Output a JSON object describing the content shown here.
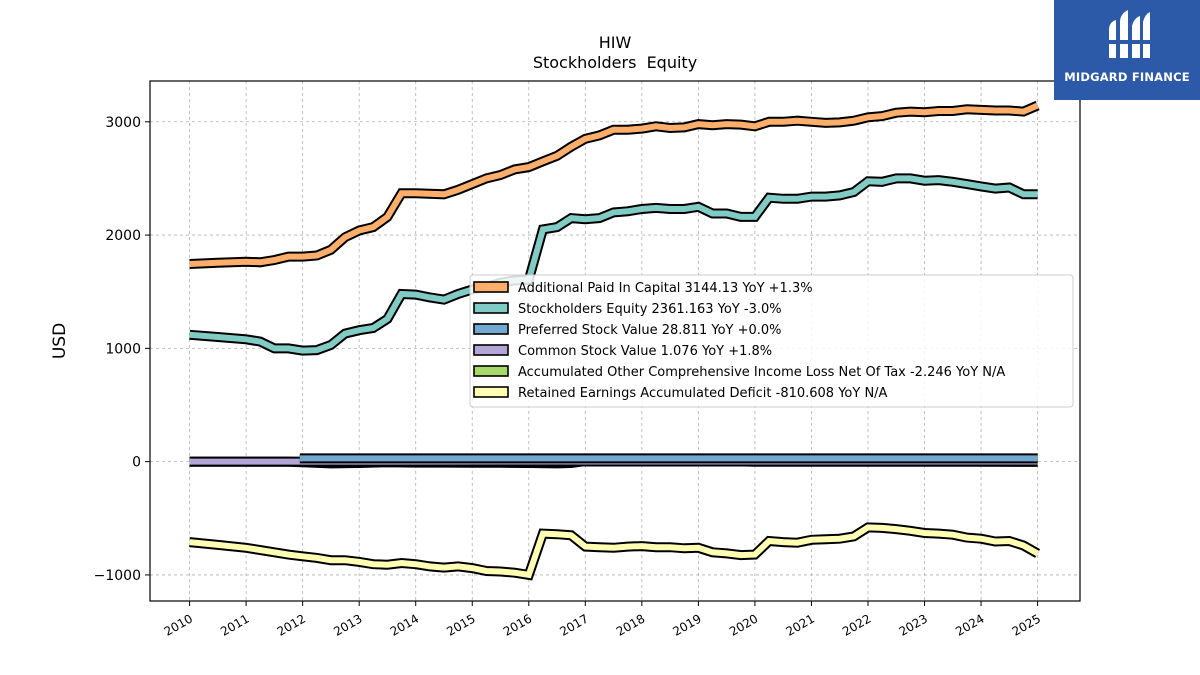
{
  "chart_data": {
    "type": "line",
    "title": "HIW",
    "subtitle": "Stockholders  Equity",
    "ylabel": "USD",
    "xlabel": "",
    "ylim": [
      -1230,
      3360
    ],
    "xlim": [
      2009.3,
      2025.75
    ],
    "yticks": [
      -1000,
      0,
      1000,
      2000,
      3000
    ],
    "ytick_labels": [
      "−1000",
      "0",
      "1000",
      "2000",
      "3000"
    ],
    "xticks": [
      2010,
      2011,
      2012,
      2013,
      2014,
      2015,
      2016,
      2017,
      2018,
      2019,
      2020,
      2021,
      2022,
      2023,
      2024,
      2025
    ],
    "xtick_labels": [
      "2010",
      "2011",
      "2012",
      "2013",
      "2014",
      "2015",
      "2016",
      "2017",
      "2018",
      "2019",
      "2020",
      "2021",
      "2022",
      "2023",
      "2024",
      "2025"
    ],
    "grid": true,
    "legend_position": "center-right",
    "series": [
      {
        "name": "Additional Paid In Capital",
        "legend": "Additional Paid In Capital  3144.13 YoY +1.3%",
        "color": "#fdae6b",
        "points": [
          [
            2010.0,
            1745
          ],
          [
            2010.5,
            1755
          ],
          [
            2011.0,
            1765
          ],
          [
            2011.25,
            1760
          ],
          [
            2011.5,
            1780
          ],
          [
            2011.75,
            1810
          ],
          [
            2012.0,
            1810
          ],
          [
            2012.25,
            1820
          ],
          [
            2012.5,
            1870
          ],
          [
            2012.75,
            1980
          ],
          [
            2013.0,
            2040
          ],
          [
            2013.25,
            2070
          ],
          [
            2013.5,
            2160
          ],
          [
            2013.75,
            2370
          ],
          [
            2014.0,
            2370
          ],
          [
            2014.5,
            2360
          ],
          [
            2014.75,
            2400
          ],
          [
            2015.0,
            2450
          ],
          [
            2015.25,
            2500
          ],
          [
            2015.5,
            2530
          ],
          [
            2015.75,
            2580
          ],
          [
            2016.0,
            2600
          ],
          [
            2016.25,
            2650
          ],
          [
            2016.5,
            2700
          ],
          [
            2016.75,
            2780
          ],
          [
            2017.0,
            2850
          ],
          [
            2017.25,
            2880
          ],
          [
            2017.5,
            2930
          ],
          [
            2017.75,
            2930
          ],
          [
            2018.0,
            2940
          ],
          [
            2018.25,
            2960
          ],
          [
            2018.5,
            2945
          ],
          [
            2018.75,
            2950
          ],
          [
            2019.0,
            2980
          ],
          [
            2019.25,
            2970
          ],
          [
            2019.5,
            2980
          ],
          [
            2019.75,
            2975
          ],
          [
            2020.0,
            2960
          ],
          [
            2020.25,
            3000
          ],
          [
            2020.5,
            3000
          ],
          [
            2020.75,
            3010
          ],
          [
            2021.0,
            3000
          ],
          [
            2021.25,
            2990
          ],
          [
            2021.5,
            2995
          ],
          [
            2021.75,
            3010
          ],
          [
            2022.0,
            3040
          ],
          [
            2022.25,
            3050
          ],
          [
            2022.5,
            3080
          ],
          [
            2022.75,
            3090
          ],
          [
            2023.0,
            3085
          ],
          [
            2023.25,
            3095
          ],
          [
            2023.5,
            3095
          ],
          [
            2023.75,
            3110
          ],
          [
            2024.0,
            3105
          ],
          [
            2024.25,
            3100
          ],
          [
            2024.5,
            3100
          ],
          [
            2024.75,
            3090
          ],
          [
            2025.0,
            3144
          ]
        ]
      },
      {
        "name": "Stockholders Equity",
        "legend": "Stockholders Equity  2361.163 YoY -3.0%",
        "color": "#80cbc4",
        "points": [
          [
            2010.0,
            1120
          ],
          [
            2010.5,
            1100
          ],
          [
            2011.0,
            1080
          ],
          [
            2011.25,
            1060
          ],
          [
            2011.5,
            1000
          ],
          [
            2011.75,
            1000
          ],
          [
            2012.0,
            980
          ],
          [
            2012.25,
            985
          ],
          [
            2012.5,
            1030
          ],
          [
            2012.75,
            1130
          ],
          [
            2013.0,
            1160
          ],
          [
            2013.25,
            1180
          ],
          [
            2013.5,
            1260
          ],
          [
            2013.75,
            1480
          ],
          [
            2014.0,
            1475
          ],
          [
            2014.25,
            1450
          ],
          [
            2014.5,
            1430
          ],
          [
            2014.75,
            1480
          ],
          [
            2015.0,
            1520
          ],
          [
            2015.25,
            1540
          ],
          [
            2015.5,
            1580
          ],
          [
            2015.75,
            1600
          ],
          [
            2016.0,
            1605
          ],
          [
            2016.25,
            2050
          ],
          [
            2016.5,
            2070
          ],
          [
            2016.75,
            2150
          ],
          [
            2017.0,
            2140
          ],
          [
            2017.25,
            2150
          ],
          [
            2017.5,
            2200
          ],
          [
            2017.75,
            2210
          ],
          [
            2018.0,
            2230
          ],
          [
            2018.25,
            2240
          ],
          [
            2018.5,
            2230
          ],
          [
            2018.75,
            2230
          ],
          [
            2019.0,
            2250
          ],
          [
            2019.25,
            2190
          ],
          [
            2019.5,
            2190
          ],
          [
            2019.75,
            2160
          ],
          [
            2020.0,
            2160
          ],
          [
            2020.25,
            2330
          ],
          [
            2020.5,
            2320
          ],
          [
            2020.75,
            2320
          ],
          [
            2021.0,
            2340
          ],
          [
            2021.25,
            2340
          ],
          [
            2021.5,
            2350
          ],
          [
            2021.75,
            2380
          ],
          [
            2022.0,
            2475
          ],
          [
            2022.25,
            2470
          ],
          [
            2022.5,
            2500
          ],
          [
            2022.75,
            2500
          ],
          [
            2023.0,
            2480
          ],
          [
            2023.25,
            2485
          ],
          [
            2023.5,
            2470
          ],
          [
            2023.75,
            2450
          ],
          [
            2024.0,
            2430
          ],
          [
            2024.25,
            2410
          ],
          [
            2024.5,
            2420
          ],
          [
            2024.75,
            2360
          ],
          [
            2025.0,
            2361
          ]
        ]
      },
      {
        "name": "Preferred Stock Value",
        "legend": "Preferred Stock Value  28.811 YoY +0.0%",
        "color": "#74a9cf",
        "points": [
          [
            2011.95,
            29
          ],
          [
            2025.0,
            29
          ]
        ]
      },
      {
        "name": "Common Stock Value",
        "legend": "Common Stock Value  1.076 YoY +1.8%",
        "color": "#b3a6d6",
        "points": [
          [
            2010.0,
            0.7
          ],
          [
            2025.0,
            1.1
          ]
        ]
      },
      {
        "name": "Accumulated Other Comprehensive Income Loss Net Of Tax",
        "legend": "Accumulated Other Comprehensive Income Loss Net Of Tax  -2.246 YoY N/A",
        "color": "#a6d96a",
        "points": [
          [
            2010.0,
            0
          ],
          [
            2011.75,
            0
          ],
          [
            2012.0,
            -5
          ],
          [
            2012.5,
            -15
          ],
          [
            2013.0,
            -12
          ],
          [
            2013.5,
            -5
          ],
          [
            2014.0,
            -8
          ],
          [
            2014.5,
            -8
          ],
          [
            2015.0,
            -10
          ],
          [
            2015.5,
            -10
          ],
          [
            2016.0,
            -12
          ],
          [
            2016.5,
            -15
          ],
          [
            2016.75,
            -12
          ],
          [
            2017.0,
            5
          ],
          [
            2017.5,
            10
          ],
          [
            2018.0,
            15
          ],
          [
            2018.5,
            20
          ],
          [
            2019.0,
            12
          ],
          [
            2019.5,
            5
          ],
          [
            2020.0,
            0
          ],
          [
            2021.0,
            0
          ],
          [
            2022.0,
            0
          ],
          [
            2023.0,
            0
          ],
          [
            2024.0,
            0
          ],
          [
            2025.0,
            -2
          ]
        ]
      },
      {
        "name": "Retained Earnings Accumulated Deficit",
        "legend": "Retained Earnings Accumulated Deficit  -810.608 YoY N/A",
        "color": "#ffffb3",
        "points": [
          [
            2010.0,
            -710
          ],
          [
            2010.5,
            -735
          ],
          [
            2011.0,
            -760
          ],
          [
            2011.5,
            -800
          ],
          [
            2011.75,
            -820
          ],
          [
            2012.0,
            -835
          ],
          [
            2012.25,
            -850
          ],
          [
            2012.5,
            -870
          ],
          [
            2012.75,
            -870
          ],
          [
            2013.0,
            -885
          ],
          [
            2013.25,
            -905
          ],
          [
            2013.5,
            -910
          ],
          [
            2013.75,
            -895
          ],
          [
            2014.0,
            -905
          ],
          [
            2014.25,
            -925
          ],
          [
            2014.5,
            -935
          ],
          [
            2014.75,
            -925
          ],
          [
            2015.0,
            -940
          ],
          [
            2015.25,
            -965
          ],
          [
            2015.5,
            -970
          ],
          [
            2015.75,
            -980
          ],
          [
            2016.0,
            -1000
          ],
          [
            2016.25,
            -635
          ],
          [
            2016.5,
            -640
          ],
          [
            2016.75,
            -650
          ],
          [
            2017.0,
            -750
          ],
          [
            2017.25,
            -755
          ],
          [
            2017.5,
            -760
          ],
          [
            2017.75,
            -750
          ],
          [
            2018.0,
            -745
          ],
          [
            2018.25,
            -755
          ],
          [
            2018.5,
            -755
          ],
          [
            2018.75,
            -765
          ],
          [
            2019.0,
            -760
          ],
          [
            2019.25,
            -800
          ],
          [
            2019.5,
            -810
          ],
          [
            2019.75,
            -825
          ],
          [
            2020.0,
            -820
          ],
          [
            2020.25,
            -700
          ],
          [
            2020.5,
            -710
          ],
          [
            2020.75,
            -715
          ],
          [
            2021.0,
            -690
          ],
          [
            2021.25,
            -685
          ],
          [
            2021.5,
            -680
          ],
          [
            2021.75,
            -660
          ],
          [
            2022.0,
            -580
          ],
          [
            2022.25,
            -585
          ],
          [
            2022.5,
            -595
          ],
          [
            2022.75,
            -610
          ],
          [
            2023.0,
            -630
          ],
          [
            2023.25,
            -635
          ],
          [
            2023.5,
            -645
          ],
          [
            2023.75,
            -670
          ],
          [
            2024.0,
            -680
          ],
          [
            2024.25,
            -705
          ],
          [
            2024.5,
            -700
          ],
          [
            2024.75,
            -740
          ],
          [
            2025.0,
            -811
          ]
        ]
      }
    ]
  },
  "logo": {
    "text": "MIDGARD FINANCE",
    "background": "#2d5aa8",
    "icon": "midgard-logo-icon"
  }
}
